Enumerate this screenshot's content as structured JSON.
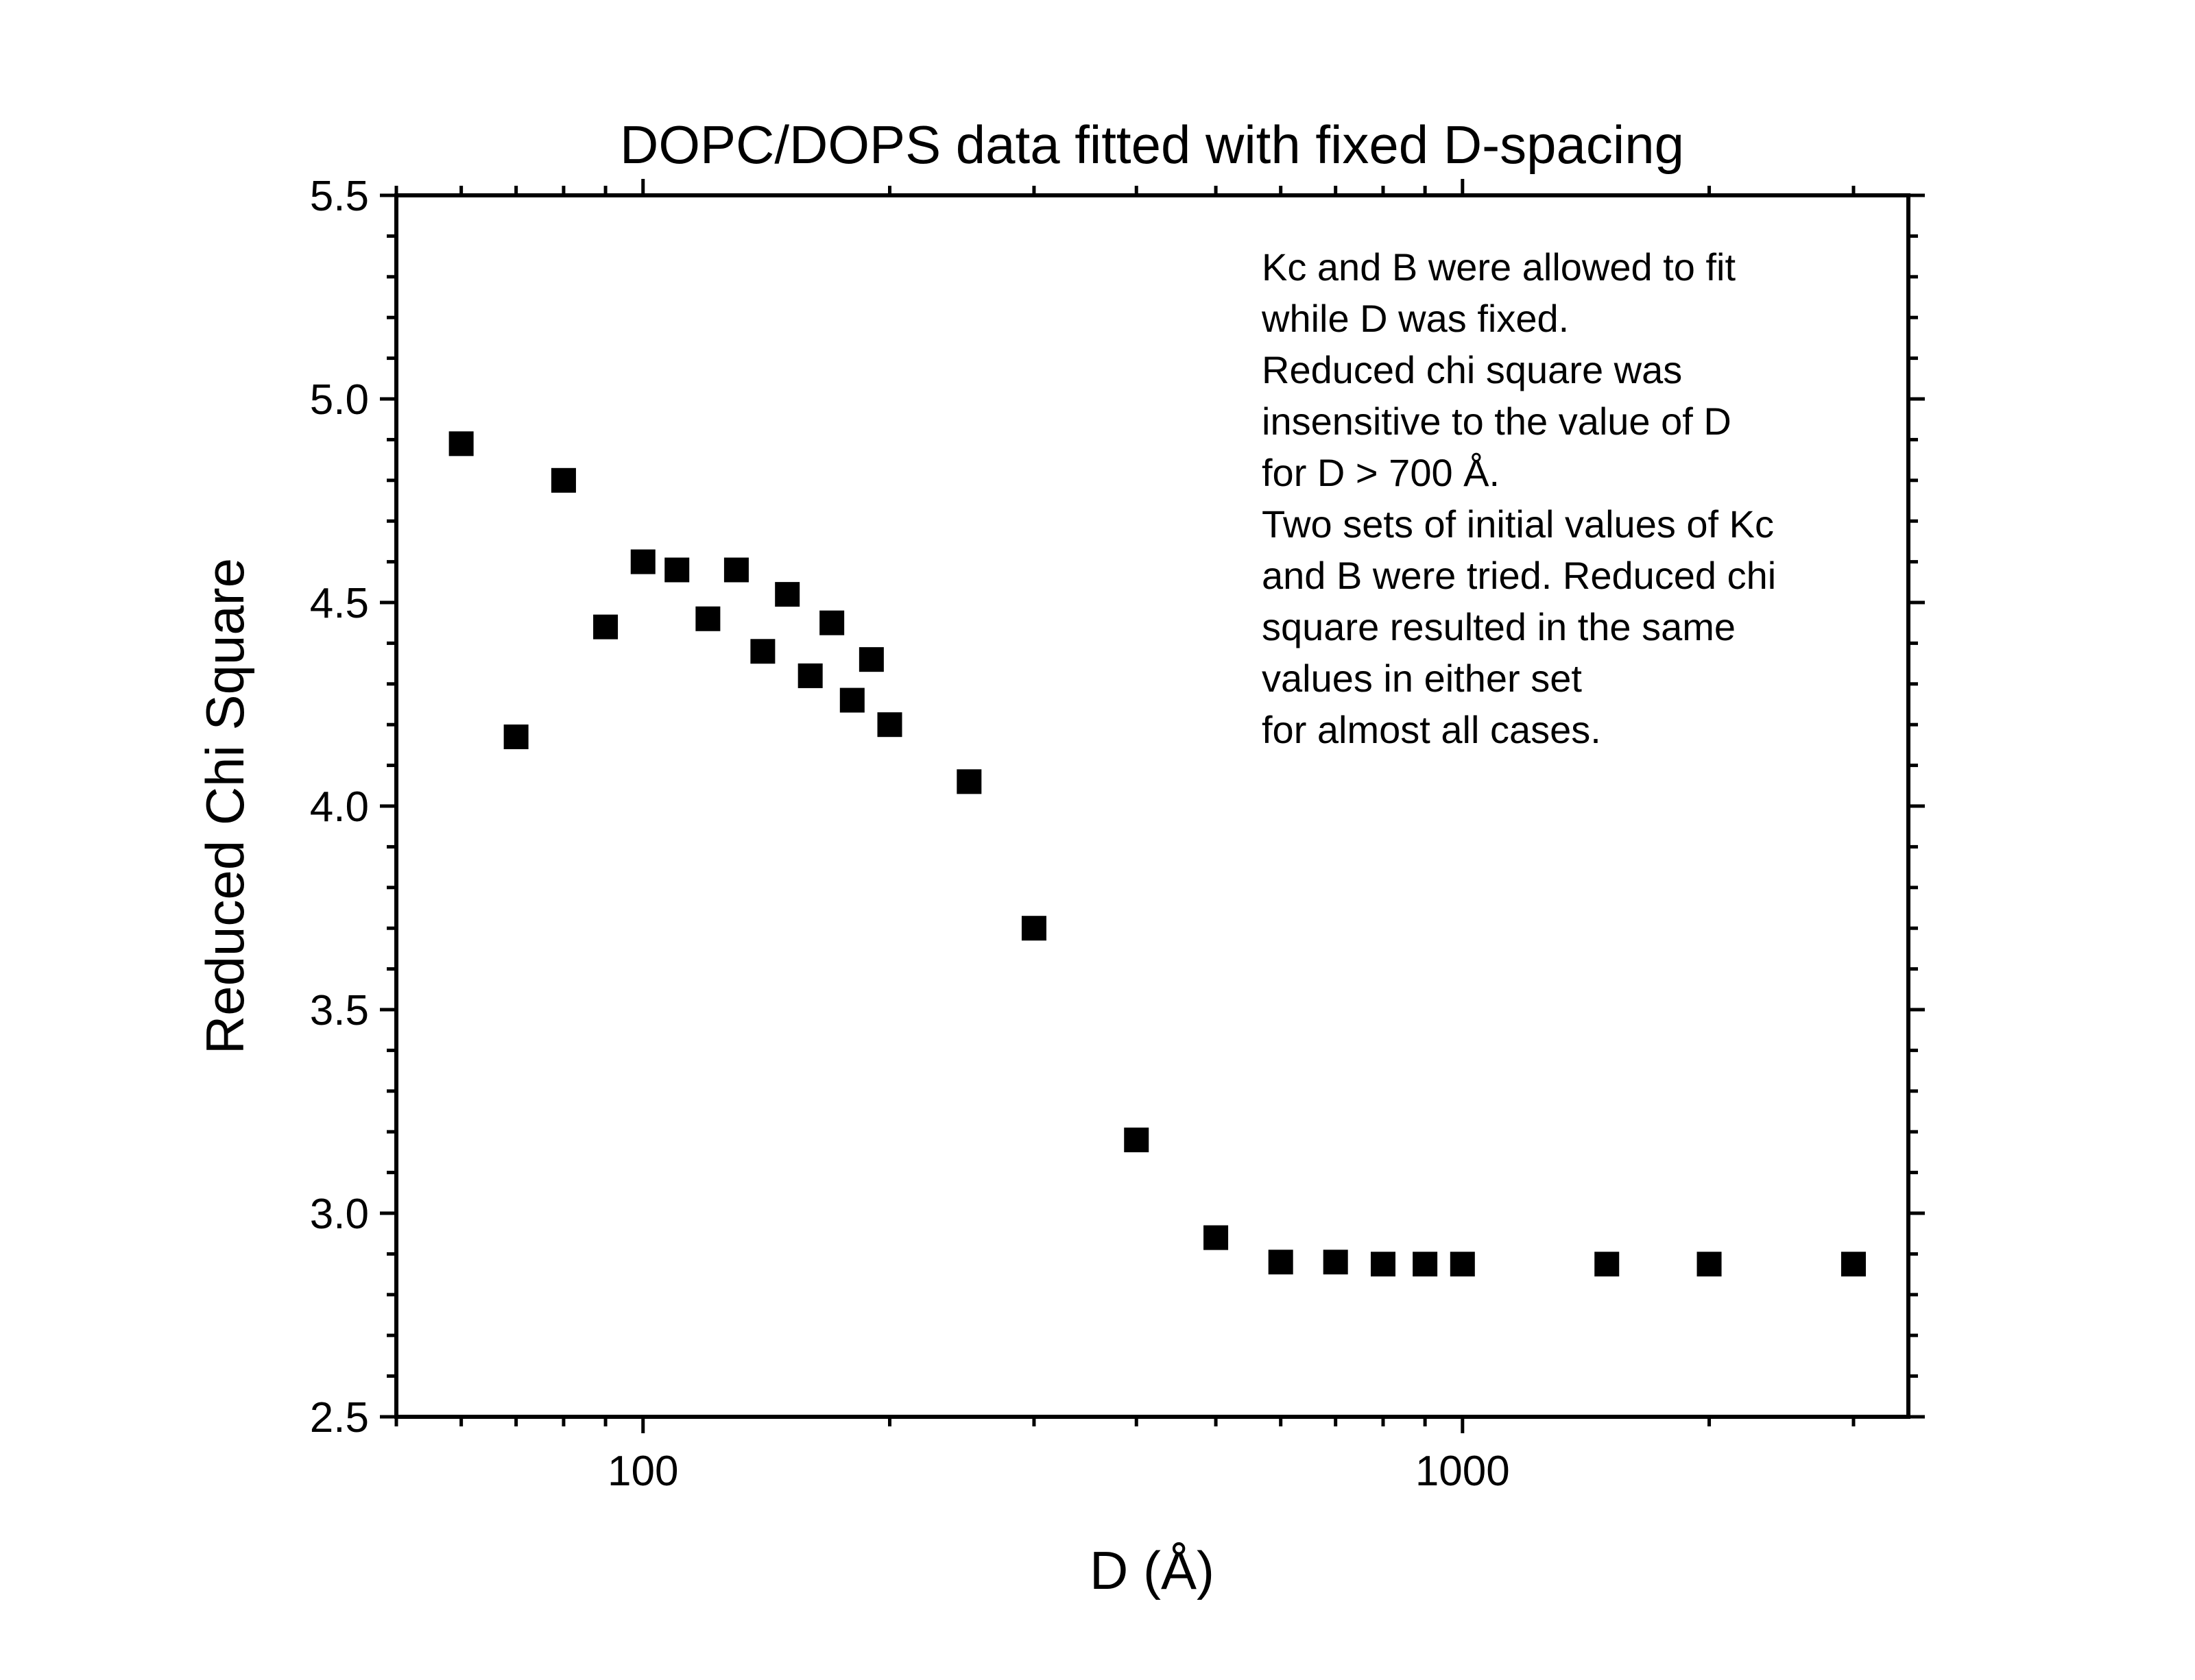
{
  "chart_data": {
    "type": "scatter",
    "title": "DOPC/DOPS data fitted with fixed D-spacing",
    "xlabel": "D (Å)",
    "ylabel": "Reduced Chi Square",
    "xscale": "log",
    "xlim": [
      50,
      3500
    ],
    "ylim": [
      2.5,
      5.5
    ],
    "xticks": [
      100,
      1000
    ],
    "xtick_labels": [
      "100",
      "1000"
    ],
    "yticks": [
      2.5,
      3.0,
      3.5,
      4.0,
      4.5,
      5.0,
      5.5
    ],
    "ytick_labels": [
      "2.5",
      "3.0",
      "3.5",
      "4.0",
      "4.5",
      "5.0",
      "5.5"
    ],
    "grid": false,
    "legend": "none",
    "marker": "filled-square",
    "marker_color": "#000000",
    "annotation": [
      "Kc and B were allowed to fit",
      "while D was fixed.",
      "Reduced chi square was",
      "insensitive to the value of D",
      "for D > 700 Å.",
      "Two sets of initial values of Kc",
      "and B were tried. Reduced chi",
      "square resulted in the same",
      "values in either set",
      "for almost all cases."
    ],
    "series": [
      {
        "points": [
          {
            "x": 60,
            "y": 4.89
          },
          {
            "x": 70,
            "y": 4.17
          },
          {
            "x": 80,
            "y": 4.8
          },
          {
            "x": 90,
            "y": 4.44
          },
          {
            "x": 100,
            "y": 4.6
          },
          {
            "x": 110,
            "y": 4.58
          },
          {
            "x": 120,
            "y": 4.46
          },
          {
            "x": 130,
            "y": 4.58
          },
          {
            "x": 140,
            "y": 4.38
          },
          {
            "x": 150,
            "y": 4.52
          },
          {
            "x": 160,
            "y": 4.32
          },
          {
            "x": 170,
            "y": 4.45
          },
          {
            "x": 180,
            "y": 4.26
          },
          {
            "x": 190,
            "y": 4.36
          },
          {
            "x": 200,
            "y": 4.2
          },
          {
            "x": 250,
            "y": 4.06
          },
          {
            "x": 300,
            "y": 3.7
          },
          {
            "x": 400,
            "y": 3.18
          },
          {
            "x": 500,
            "y": 2.94
          },
          {
            "x": 600,
            "y": 2.88
          },
          {
            "x": 700,
            "y": 2.88
          },
          {
            "x": 800,
            "y": 2.875
          },
          {
            "x": 900,
            "y": 2.875
          },
          {
            "x": 1000,
            "y": 2.875
          },
          {
            "x": 1500,
            "y": 2.875
          },
          {
            "x": 2000,
            "y": 2.875
          },
          {
            "x": 3000,
            "y": 2.875
          }
        ]
      }
    ]
  }
}
